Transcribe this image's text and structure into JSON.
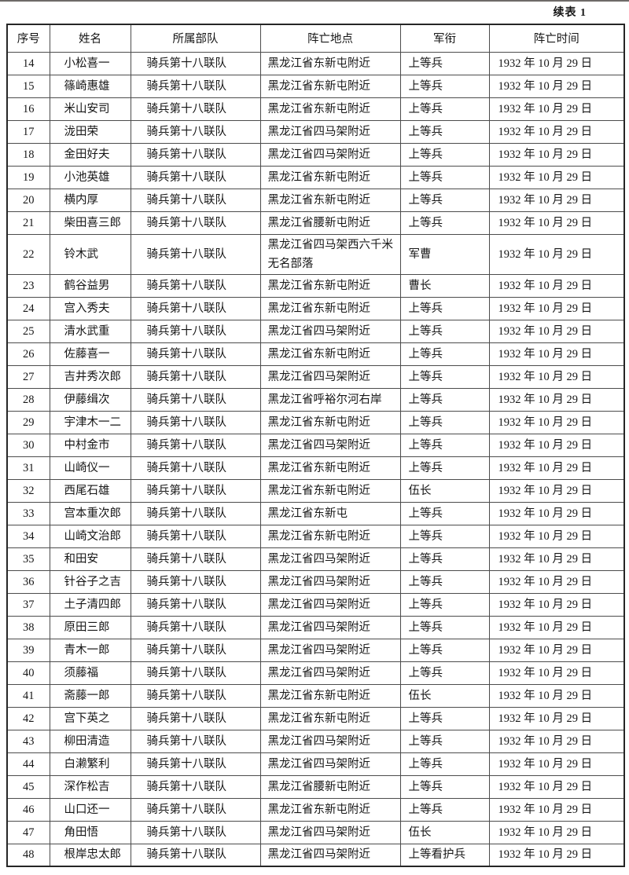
{
  "page": {
    "caption": "续表 1"
  },
  "table": {
    "columns": [
      "序号",
      "姓名",
      "所属部队",
      "阵亡地点",
      "军衔",
      "阵亡时间"
    ],
    "rows": [
      [
        "14",
        "小松喜一",
        "骑兵第十八联队",
        "黑龙江省东新屯附近",
        "上等兵",
        "1932 年 10 月 29 日"
      ],
      [
        "15",
        "篠崎惠雄",
        "骑兵第十八联队",
        "黑龙江省东新屯附近",
        "上等兵",
        "1932 年 10 月 29 日"
      ],
      [
        "16",
        "米山安司",
        "骑兵第十八联队",
        "黑龙江省东新屯附近",
        "上等兵",
        "1932 年 10 月 29 日"
      ],
      [
        "17",
        "泷田荣",
        "骑兵第十八联队",
        "黑龙江省四马架附近",
        "上等兵",
        "1932 年 10 月 29 日"
      ],
      [
        "18",
        "金田好夫",
        "骑兵第十八联队",
        "黑龙江省四马架附近",
        "上等兵",
        "1932 年 10 月 29 日"
      ],
      [
        "19",
        "小池英雄",
        "骑兵第十八联队",
        "黑龙江省东新屯附近",
        "上等兵",
        "1932 年 10 月 29 日"
      ],
      [
        "20",
        "横内厚",
        "骑兵第十八联队",
        "黑龙江省东新屯附近",
        "上等兵",
        "1932 年 10 月 29 日"
      ],
      [
        "21",
        "柴田喜三郎",
        "骑兵第十八联队",
        "黑龙江省腰新屯附近",
        "上等兵",
        "1932 年 10 月 29 日"
      ],
      [
        "22",
        "铃木武",
        "骑兵第十八联队",
        "黑龙江省四马架西六千米无名部落",
        "军曹",
        "1932 年 10 月 29 日"
      ],
      [
        "23",
        "鹤谷益男",
        "骑兵第十八联队",
        "黑龙江省东新屯附近",
        "曹长",
        "1932 年 10 月 29 日"
      ],
      [
        "24",
        "宫入秀夫",
        "骑兵第十八联队",
        "黑龙江省东新屯附近",
        "上等兵",
        "1932 年 10 月 29 日"
      ],
      [
        "25",
        "清水武重",
        "骑兵第十八联队",
        "黑龙江省四马架附近",
        "上等兵",
        "1932 年 10 月 29 日"
      ],
      [
        "26",
        "佐藤喜一",
        "骑兵第十八联队",
        "黑龙江省东新屯附近",
        "上等兵",
        "1932 年 10 月 29 日"
      ],
      [
        "27",
        "吉井秀次郎",
        "骑兵第十八联队",
        "黑龙江省四马架附近",
        "上等兵",
        "1932 年 10 月 29 日"
      ],
      [
        "28",
        "伊藤缉次",
        "骑兵第十八联队",
        "黑龙江省呼裕尔河右岸",
        "上等兵",
        "1932 年 10 月 29 日"
      ],
      [
        "29",
        "宇津木一二",
        "骑兵第十八联队",
        "黑龙江省东新屯附近",
        "上等兵",
        "1932 年 10 月 29 日"
      ],
      [
        "30",
        "中村金市",
        "骑兵第十八联队",
        "黑龙江省四马架附近",
        "上等兵",
        "1932 年 10 月 29 日"
      ],
      [
        "31",
        "山崎仪一",
        "骑兵第十八联队",
        "黑龙江省东新屯附近",
        "上等兵",
        "1932 年 10 月 29 日"
      ],
      [
        "32",
        "西尾石雄",
        "骑兵第十八联队",
        "黑龙江省东新屯附近",
        "伍长",
        "1932 年 10 月 29 日"
      ],
      [
        "33",
        "宫本重次郎",
        "骑兵第十八联队",
        "黑龙江省东新屯",
        "上等兵",
        "1932 年 10 月 29 日"
      ],
      [
        "34",
        "山崎文治郎",
        "骑兵第十八联队",
        "黑龙江省东新屯附近",
        "上等兵",
        "1932 年 10 月 29 日"
      ],
      [
        "35",
        "和田安",
        "骑兵第十八联队",
        "黑龙江省四马架附近",
        "上等兵",
        "1932 年 10 月 29 日"
      ],
      [
        "36",
        "针谷子之吉",
        "骑兵第十八联队",
        "黑龙江省四马架附近",
        "上等兵",
        "1932 年 10 月 29 日"
      ],
      [
        "37",
        "土子清四郎",
        "骑兵第十八联队",
        "黑龙江省四马架附近",
        "上等兵",
        "1932 年 10 月 29 日"
      ],
      [
        "38",
        "原田三郎",
        "骑兵第十八联队",
        "黑龙江省四马架附近",
        "上等兵",
        "1932 年 10 月 29 日"
      ],
      [
        "39",
        "青木一郎",
        "骑兵第十八联队",
        "黑龙江省四马架附近",
        "上等兵",
        "1932 年 10 月 29 日"
      ],
      [
        "40",
        "须藤福",
        "骑兵第十八联队",
        "黑龙江省四马架附近",
        "上等兵",
        "1932 年 10 月 29 日"
      ],
      [
        "41",
        "斋藤一郎",
        "骑兵第十八联队",
        "黑龙江省东新屯附近",
        "伍长",
        "1932 年 10 月 29 日"
      ],
      [
        "42",
        "宫下英之",
        "骑兵第十八联队",
        "黑龙江省东新屯附近",
        "上等兵",
        "1932 年 10 月 29 日"
      ],
      [
        "43",
        "柳田清造",
        "骑兵第十八联队",
        "黑龙江省四马架附近",
        "上等兵",
        "1932 年 10 月 29 日"
      ],
      [
        "44",
        "白濑繁利",
        "骑兵第十八联队",
        "黑龙江省四马架附近",
        "上等兵",
        "1932 年 10 月 29 日"
      ],
      [
        "45",
        "深作松吉",
        "骑兵第十八联队",
        "黑龙江省腰新屯附近",
        "上等兵",
        "1932 年 10 月 29 日"
      ],
      [
        "46",
        "山口还一",
        "骑兵第十八联队",
        "黑龙江省东新屯附近",
        "上等兵",
        "1932 年 10 月 29 日"
      ],
      [
        "47",
        "角田悟",
        "骑兵第十八联队",
        "黑龙江省四马架附近",
        "伍长",
        "1932 年 10 月 29 日"
      ],
      [
        "48",
        "根岸忠太郎",
        "骑兵第十八联队",
        "黑龙江省四马架附近",
        "上等看护兵",
        "1932 年 10 月 29 日"
      ]
    ]
  }
}
